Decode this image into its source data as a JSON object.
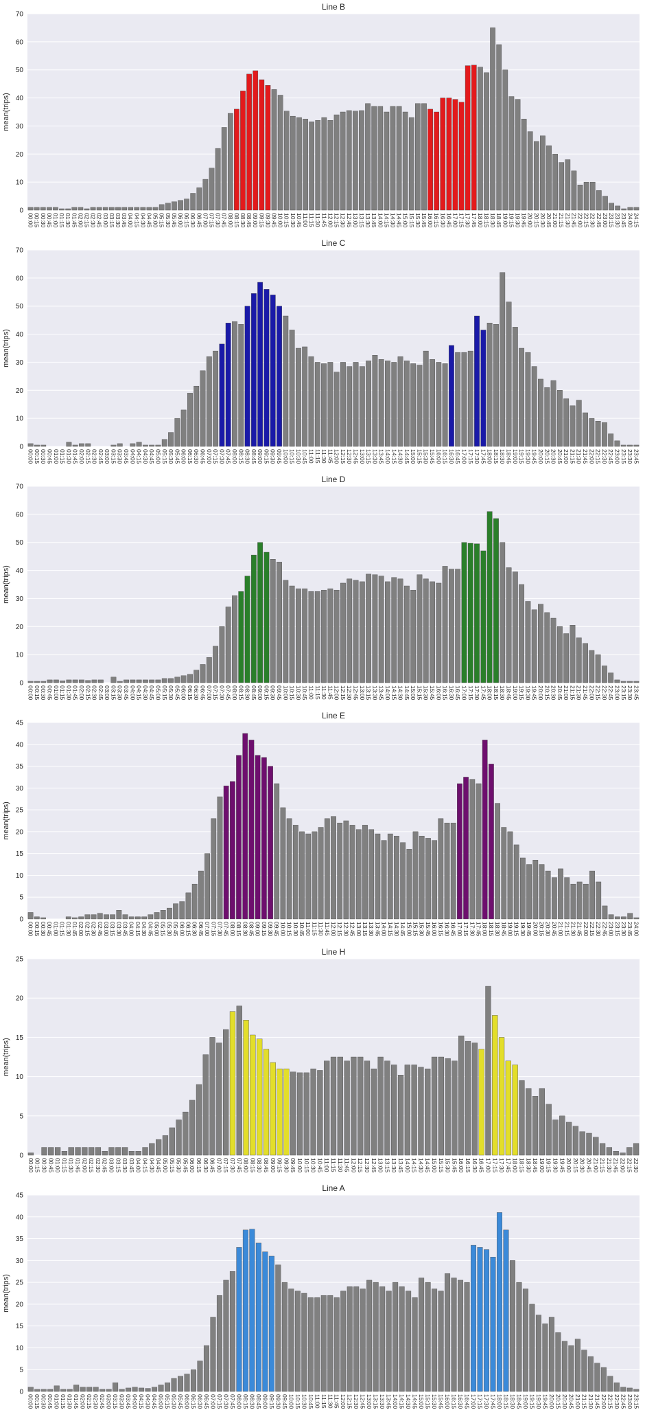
{
  "chart_data": [
    {
      "type": "bar",
      "title": "Line B",
      "ylabel": "mean(trips)",
      "ylim": [
        0,
        70
      ],
      "yticks": [
        0,
        10,
        20,
        30,
        40,
        50,
        60,
        70
      ],
      "grid": true,
      "highlight_color": "#e31a1c",
      "base_color": "#808080",
      "highlight_ranges": [
        [
          33,
          38
        ],
        [
          64,
          71
        ]
      ],
      "values": [
        1,
        1,
        1,
        1,
        1,
        0.5,
        0.5,
        1,
        1,
        0.5,
        1,
        1,
        1,
        1,
        1,
        1,
        1,
        1,
        1,
        1,
        1,
        2,
        2.5,
        3,
        3.5,
        4,
        6,
        8,
        11,
        15,
        22,
        29.5,
        34.5,
        36,
        42.5,
        48.5,
        49.7,
        46.5,
        44.5,
        43,
        41,
        35.3,
        33.5,
        33,
        32.5,
        31.5,
        32,
        33,
        32,
        34,
        35,
        35.5,
        35.3,
        35.5,
        38,
        37,
        37,
        35,
        37,
        37,
        35,
        33,
        38,
        38,
        36,
        35,
        40,
        40,
        39.5,
        38.5,
        51.5,
        51.7,
        51,
        49,
        65,
        59,
        50,
        40.5,
        39.5,
        32.5,
        28,
        24.5,
        26.5,
        23,
        20,
        17,
        18,
        14,
        9,
        10,
        10,
        7,
        5,
        2.5,
        1.5,
        0.5,
        1,
        1
      ]
    },
    {
      "type": "bar",
      "title": "Line C",
      "ylabel": "mean(trips)",
      "ylim": [
        0,
        70
      ],
      "yticks": [
        0,
        10,
        20,
        30,
        40,
        50,
        60,
        70
      ],
      "grid": true,
      "highlight_color": "#1a1aa8",
      "base_color": "#808080",
      "highlight_ranges": [
        [
          30,
          31
        ],
        [
          34,
          39
        ],
        [
          66,
          66
        ],
        [
          70,
          71
        ]
      ],
      "values": [
        1,
        0.5,
        0.5,
        0,
        0,
        0,
        1.5,
        0.5,
        1,
        1,
        0,
        0,
        0,
        0.5,
        1,
        0,
        1,
        1.5,
        0.5,
        0.5,
        0.5,
        2.5,
        5,
        10,
        13,
        19,
        21.5,
        27,
        32,
        34,
        36.5,
        44,
        44.5,
        43.5,
        50,
        54.5,
        58.5,
        56,
        54,
        50,
        46.5,
        41.5,
        35,
        35.5,
        32,
        30,
        29.5,
        30,
        26.5,
        30,
        28.5,
        30,
        28.5,
        30.5,
        32.5,
        31,
        30.5,
        30,
        32,
        30.5,
        29.5,
        29,
        34,
        31,
        30,
        29.5,
        36,
        33.5,
        33.5,
        34,
        46.5,
        41.5,
        44,
        43.5,
        62,
        51.5,
        42.5,
        35,
        33.5,
        28.5,
        24,
        21,
        23.5,
        20,
        17,
        14.5,
        16.5,
        12,
        10,
        9,
        8.5,
        4.5,
        2,
        0.5,
        0.5,
        0.5
      ]
    },
    {
      "type": "bar",
      "title": "Line D",
      "ylabel": "mean(trips)",
      "ylim": [
        0,
        70
      ],
      "yticks": [
        0,
        10,
        20,
        30,
        40,
        50,
        60,
        70
      ],
      "grid": true,
      "highlight_color": "#2a7f2a",
      "base_color": "#808080",
      "highlight_ranges": [
        [
          33,
          37
        ],
        [
          68,
          73
        ]
      ],
      "values": [
        0.5,
        0.5,
        0.5,
        1,
        1,
        0.7,
        1,
        1,
        1,
        0.8,
        1,
        1,
        0,
        2,
        0.5,
        1,
        1,
        1,
        1,
        1,
        1,
        1.5,
        1.5,
        2,
        2.5,
        3,
        4.5,
        6.5,
        9,
        13,
        20,
        27,
        31,
        32.5,
        38,
        45.5,
        50,
        46.5,
        44,
        43,
        36.5,
        34.5,
        33.5,
        33.5,
        32.5,
        32.5,
        33,
        33.5,
        33,
        35.5,
        37,
        36.5,
        36,
        38.7,
        38.5,
        38,
        36,
        37.5,
        37,
        34.5,
        33,
        38.5,
        37,
        36,
        35.5,
        41.5,
        40.5,
        40.5,
        50,
        49.7,
        49.5,
        47,
        61,
        58.5,
        50,
        41,
        39.5,
        35,
        29,
        26,
        28,
        25,
        23,
        20,
        17.5,
        20.5,
        16,
        14,
        11.5,
        10,
        6,
        3.5,
        1,
        0.5,
        0.5,
        0.5
      ]
    },
    {
      "type": "bar",
      "title": "Line E",
      "ylabel": "mean(trips)",
      "ylim": [
        0,
        45
      ],
      "yticks": [
        0,
        5,
        10,
        15,
        20,
        25,
        30,
        35,
        40,
        45
      ],
      "grid": true,
      "highlight_color": "#6e0f6e",
      "base_color": "#808080",
      "highlight_ranges": [
        [
          31,
          38
        ],
        [
          68,
          69
        ],
        [
          72,
          73
        ]
      ],
      "values": [
        1.5,
        0.5,
        0.3,
        0,
        0,
        0,
        0.5,
        0.3,
        0.5,
        1,
        1,
        1.3,
        1,
        1,
        2,
        1,
        0.5,
        0.5,
        0.5,
        1,
        1.5,
        2,
        2.5,
        3.5,
        4,
        6,
        8,
        11,
        15,
        23,
        28,
        30.5,
        31.5,
        37.5,
        42.5,
        41,
        37.5,
        37,
        35,
        31,
        25.5,
        23,
        21.5,
        20,
        19.5,
        20,
        21,
        23,
        23.5,
        22,
        22.5,
        21.5,
        20.5,
        21.5,
        20.5,
        19.5,
        18,
        19.5,
        19,
        17.5,
        16,
        20,
        19,
        18.5,
        18,
        23,
        22,
        22,
        31,
        32.5,
        32,
        31,
        41,
        35.5,
        26.5,
        21,
        20,
        17,
        14,
        12.5,
        13.5,
        12.5,
        11,
        9.5,
        11.5,
        9.5,
        8,
        8.5,
        8,
        11,
        8.5,
        3,
        1,
        0.5,
        0.5,
        1.3,
        0.3
      ]
    },
    {
      "type": "bar",
      "title": "Line H",
      "ylabel": "mean(trips)",
      "ylim": [
        0,
        25
      ],
      "yticks": [
        0,
        5,
        10,
        15,
        20,
        25
      ],
      "grid": true,
      "highlight_color": "#e3de2a",
      "base_color": "#808080",
      "highlight_ranges": [
        [
          30,
          30
        ],
        [
          32,
          38
        ],
        [
          67,
          67
        ],
        [
          69,
          72
        ]
      ],
      "values": [
        0.3,
        0,
        1,
        1,
        1,
        0.5,
        1,
        1,
        1,
        1,
        1,
        0.5,
        1,
        1,
        1,
        0.5,
        0.5,
        1,
        1.5,
        2,
        2.5,
        3.5,
        4.5,
        5.5,
        7,
        9,
        12.8,
        15,
        14.3,
        16,
        18.3,
        19,
        17.2,
        15.3,
        14.8,
        13.5,
        11.8,
        11,
        11,
        10.6,
        10.5,
        10.5,
        11,
        10.8,
        12,
        12.5,
        12.5,
        12,
        12.5,
        12.5,
        12,
        11,
        12.5,
        12,
        11.5,
        10.2,
        11.5,
        11.5,
        11.2,
        11,
        12.5,
        12.5,
        12.3,
        12,
        15.2,
        14.5,
        14.3,
        13.5,
        21.5,
        17.8,
        15,
        12,
        11.5,
        9.5,
        8.5,
        7.5,
        8.5,
        6.5,
        4.5,
        5,
        4.2,
        3.7,
        3,
        2.8,
        2.3,
        1.5,
        1,
        0.5,
        0.3,
        1,
        1.5
      ]
    },
    {
      "type": "bar",
      "title": "Line A",
      "ylabel": "mean(trips)",
      "ylim": [
        0,
        45
      ],
      "yticks": [
        0,
        5,
        10,
        15,
        20,
        25,
        30,
        35,
        40,
        45
      ],
      "grid": true,
      "highlight_color": "#3b8ad9",
      "base_color": "#808080",
      "highlight_ranges": [
        [
          32,
          37
        ],
        [
          68,
          73
        ]
      ],
      "values": [
        1,
        0.5,
        0.5,
        0.5,
        1.3,
        0.5,
        0.5,
        1.5,
        1,
        1,
        1,
        0.5,
        0.5,
        2,
        0.5,
        0.8,
        1,
        0.8,
        0.7,
        1,
        1.5,
        2,
        3,
        3.5,
        4,
        5,
        7,
        10.5,
        17,
        22,
        25.5,
        27.5,
        33,
        37,
        37.2,
        34,
        32,
        31,
        29,
        25,
        23.5,
        23,
        22.5,
        21.5,
        21.5,
        22,
        22,
        21.5,
        23,
        24,
        24,
        23.5,
        25.5,
        25,
        24,
        23,
        25,
        24,
        23,
        21.5,
        26,
        25,
        23.5,
        23,
        27,
        26,
        25.5,
        25,
        33.5,
        33,
        32.5,
        30.8,
        41,
        37,
        30,
        25,
        23.5,
        20,
        17.5,
        15.5,
        17,
        13.5,
        11.5,
        10.5,
        12,
        9.5,
        8,
        6.5,
        5.5,
        3.5,
        2,
        1,
        0.8,
        0.5
      ]
    }
  ]
}
